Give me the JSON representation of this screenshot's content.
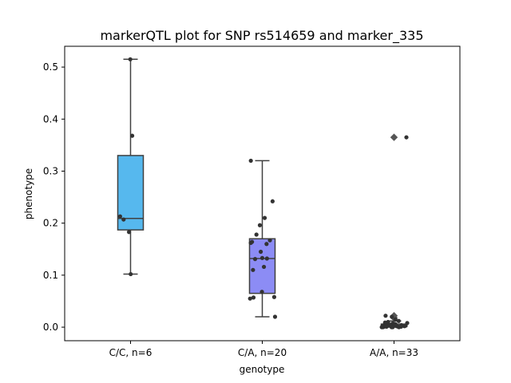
{
  "chart_data": {
    "type": "box",
    "title": "markerQTL plot for SNP rs514659 and marker_335",
    "xlabel": "genotype",
    "ylabel": "phenotype",
    "categories": [
      "C/C, n=6",
      "C/A, n=20",
      "A/A, n=33"
    ],
    "ylim": [
      -0.026,
      0.54
    ],
    "yticks": [
      "0.0",
      "0.1",
      "0.2",
      "0.3",
      "0.4",
      "0.5"
    ],
    "grid": false,
    "colors": [
      "#56b8ee",
      "#8c8cf5",
      "#e0e0e0"
    ],
    "boxes": [
      {
        "q1": 0.187,
        "median": 0.209,
        "q3": 0.33,
        "whisker_low": 0.102,
        "whisker_high": 0.515,
        "outliers": []
      },
      {
        "q1": 0.065,
        "median": 0.132,
        "q3": 0.17,
        "whisker_low": 0.02,
        "whisker_high": 0.32,
        "outliers": []
      },
      {
        "q1": 0.001,
        "median": 0.003,
        "q3": 0.006,
        "whisker_low": 0.0,
        "whisker_high": 0.012,
        "outliers": [
          0.018,
          0.022,
          0.365
        ]
      }
    ],
    "points": [
      [
        0.515,
        0.368,
        0.213,
        0.207,
        0.183,
        0.102
      ],
      [
        0.32,
        0.242,
        0.21,
        0.196,
        0.178,
        0.167,
        0.16,
        0.162,
        0.133,
        0.131,
        0.132,
        0.11,
        0.116,
        0.068,
        0.057,
        0.055,
        0.058,
        0.02,
        0.164,
        0.145
      ],
      [
        0.365,
        0.022,
        0.02,
        0.015,
        0.012,
        0.01,
        0.009,
        0.008,
        0.007,
        0.006,
        0.006,
        0.005,
        0.005,
        0.004,
        0.004,
        0.004,
        0.003,
        0.003,
        0.003,
        0.002,
        0.002,
        0.002,
        0.002,
        0.001,
        0.001,
        0.001,
        0.001,
        0.001,
        0.0,
        0.0,
        0.0,
        0.0,
        0.0
      ]
    ]
  }
}
